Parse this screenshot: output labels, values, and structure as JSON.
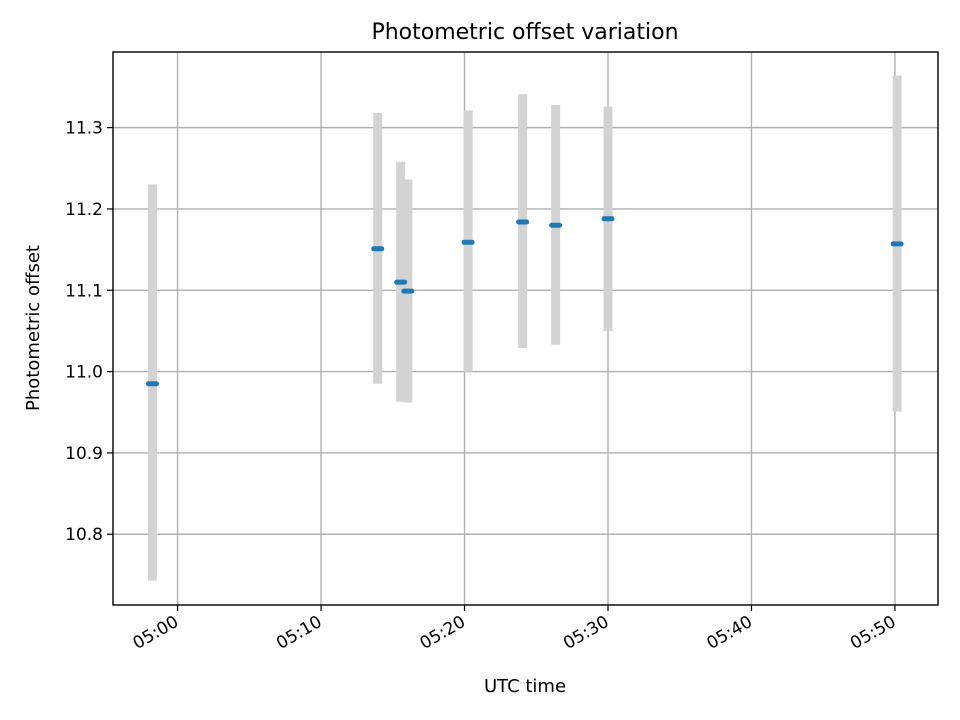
{
  "chart_data": {
    "type": "scatter",
    "title": "Photometric offset variation",
    "xlabel": "UTC time",
    "ylabel": "Photometric offset",
    "xlim": [
      "04:55:30",
      "05:53:00"
    ],
    "ylim": [
      10.713,
      11.393
    ],
    "grid": true,
    "x_ticks": [
      "05:00",
      "05:10",
      "05:20",
      "05:30",
      "05:40",
      "05:50"
    ],
    "y_ticks": [
      10.8,
      10.9,
      11.0,
      11.1,
      11.2,
      11.3
    ],
    "series": [
      {
        "x": [
          "04:58:15",
          "05:13:57",
          "05:15:33",
          "05:16:03",
          "05:20:15",
          "05:24:03",
          "05:26:21",
          "05:30:00",
          "05:50:09"
        ],
        "y": [
          10.985,
          11.151,
          11.11,
          11.099,
          11.159,
          11.184,
          11.18,
          11.188,
          11.157
        ],
        "y_low": [
          10.743,
          10.985,
          10.963,
          10.962,
          11.0,
          11.029,
          11.033,
          11.05,
          10.951
        ],
        "y_high": [
          11.23,
          11.318,
          11.258,
          11.236,
          11.321,
          11.341,
          11.328,
          11.326,
          11.364
        ]
      }
    ],
    "colors": {
      "point": "#1f77b4",
      "errorbar": "#d3d3d3",
      "grid": "#b0b0b0"
    }
  }
}
